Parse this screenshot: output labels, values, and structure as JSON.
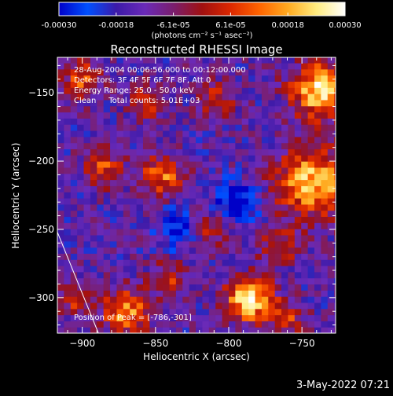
{
  "chart_data": {
    "type": "heatmap",
    "title": "Reconstructed RHESSI Image",
    "xlabel": "Heliocentric X (arcsec)",
    "ylabel": "Heliocentric Y (arcsec)",
    "xlim": [
      -917,
      -727
    ],
    "ylim": [
      -326,
      -124
    ],
    "xticks": [
      -900,
      -850,
      -800,
      -750
    ],
    "yticks": [
      -150,
      -200,
      -250,
      -300
    ],
    "colorbar": {
      "range": [
        -0.0003,
        0.0003
      ],
      "tick_labels": [
        "-0.00030",
        "-0.00018",
        "-6.1e-05",
        "6.1e-05",
        "0.00018",
        "0.00030"
      ],
      "units": "(photons cm⁻² s⁻¹ asec⁻²)",
      "colormap": [
        "#0000c8",
        "#0050ff",
        "#3c1aa8",
        "#6a2ab8",
        "#7a1e6e",
        "#a01010",
        "#dc2800",
        "#ff6400",
        "#ffaa20",
        "#ffec80",
        "#ffffff"
      ]
    },
    "annotations": [
      "28-Aug-2004 00:06:56.000 to 00:12:00.000",
      "Detectors: 3F 4F 5F 6F 7F 8F, Att 0",
      "Energy Range: 25.0 - 50.0 keV",
      "Clean     Total counts: 5.01E+03"
    ],
    "peak_label": "Position of Peak = [-786,-301]",
    "peak_position": [
      -786,
      -301
    ],
    "limb_line": [
      [
        -917,
        -252
      ],
      [
        -889,
        -326
      ]
    ],
    "hotspots": [
      {
        "x": -737,
        "y": -148,
        "amp": 1.0,
        "sigma": 14
      },
      {
        "x": -742,
        "y": -215,
        "amp": 0.9,
        "sigma": 18
      },
      {
        "x": -786,
        "y": -301,
        "amp": 1.05,
        "sigma": 11
      },
      {
        "x": -870,
        "y": -310,
        "amp": 0.8,
        "sigma": 11
      },
      {
        "x": -845,
        "y": -210,
        "amp": 0.7,
        "sigma": 10
      },
      {
        "x": -885,
        "y": -205,
        "amp": 0.55,
        "sigma": 9
      },
      {
        "x": -900,
        "y": -140,
        "amp": 0.55,
        "sigma": 10
      },
      {
        "x": -855,
        "y": -155,
        "amp": 0.5,
        "sigma": 9
      },
      {
        "x": -808,
        "y": -155,
        "amp": 0.45,
        "sigma": 9
      },
      {
        "x": -812,
        "y": -250,
        "amp": 0.45,
        "sigma": 9
      },
      {
        "x": -765,
        "y": -262,
        "amp": 0.4,
        "sigma": 10
      },
      {
        "x": -840,
        "y": -285,
        "amp": 0.45,
        "sigma": 9
      },
      {
        "x": -760,
        "y": -315,
        "amp": 0.45,
        "sigma": 9
      },
      {
        "x": -905,
        "y": -300,
        "amp": 0.45,
        "sigma": 8
      },
      {
        "x": -795,
        "y": -230,
        "amp": -0.6,
        "sigma": 10
      },
      {
        "x": -835,
        "y": -250,
        "amp": -0.4,
        "sigma": 10
      }
    ]
  },
  "footer": {
    "date": "3-May-2022 07:21"
  }
}
